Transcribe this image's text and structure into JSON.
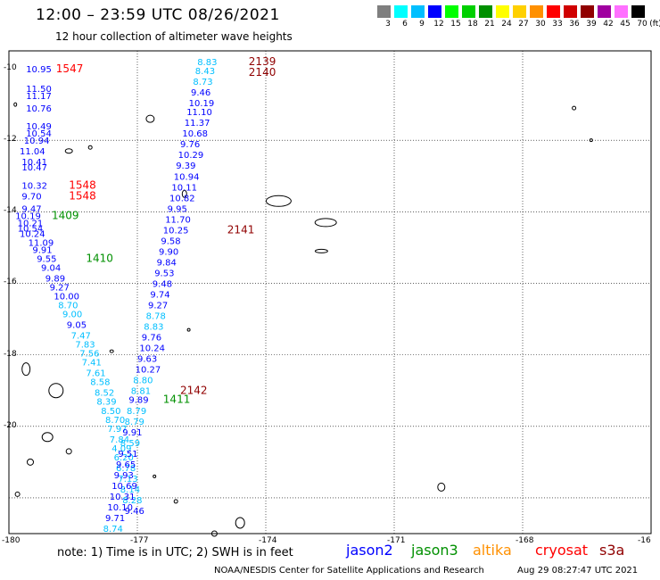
{
  "title": "12:00 – 23:59 UTC 08/26/2021",
  "subtitle": "12 hour collection of altimeter wave heights",
  "colorbar": {
    "unit": "(ft)",
    "swatches": [
      {
        "color": "#7f7f7f",
        "label": "3"
      },
      {
        "color": "#00ffff",
        "label": "6"
      },
      {
        "color": "#00bfff",
        "label": "9"
      },
      {
        "color": "#0000ff",
        "label": "12"
      },
      {
        "color": "#00ff00",
        "label": "15"
      },
      {
        "color": "#00d000",
        "label": "18"
      },
      {
        "color": "#009000",
        "label": "21"
      },
      {
        "color": "#ffff00",
        "label": "24"
      },
      {
        "color": "#ffd000",
        "label": "27"
      },
      {
        "color": "#ff9000",
        "label": "30"
      },
      {
        "color": "#ff0000",
        "label": "33"
      },
      {
        "color": "#d00000",
        "label": "36"
      },
      {
        "color": "#900000",
        "label": "39"
      },
      {
        "color": "#a000a0",
        "label": "42"
      },
      {
        "color": "#ff70ff",
        "label": "45"
      },
      {
        "color": "#000000",
        "label": "70"
      }
    ]
  },
  "axes": {
    "lon_labels": [
      "-180",
      "-177",
      "-174",
      "-171",
      "-168",
      "-16"
    ],
    "lat_labels": [
      "-10",
      "-12",
      "-14",
      "-16",
      "-18",
      "-20"
    ]
  },
  "note": "note:  1) Time is in UTC;  2) SWH is in feet",
  "legend": [
    {
      "name": "jason2",
      "color": "#0000ff"
    },
    {
      "name": "jason3",
      "color": "#009000"
    },
    {
      "name": "altika",
      "color": "#ff9000"
    },
    {
      "name": "cryosat",
      "color": "#ff0000"
    },
    {
      "name": "s3a",
      "color": "#900000"
    }
  ],
  "credit": "NOAA/NESDIS Center for Satellite Applications and Research",
  "generated": "Aug 29 08:27:47 UTC 2021",
  "colors": {
    "light_blue": "#00bfff",
    "blue": "#0000ff",
    "dark_blue": "#00008b",
    "green": "#009000",
    "red": "#ff0000",
    "dark_red": "#900000"
  },
  "tracks": [
    {
      "id": "track-a",
      "points": [
        {
          "lon": -179.6,
          "lat": -10.1,
          "value": "10.95",
          "color": "blue"
        },
        {
          "lon": -179.6,
          "lat": -10.65,
          "value": "11.50",
          "color": "blue"
        },
        {
          "lon": -179.6,
          "lat": -10.85,
          "value": "11.17",
          "color": "blue"
        },
        {
          "lon": -179.6,
          "lat": -11.2,
          "value": "10.76",
          "color": "blue"
        },
        {
          "lon": -179.6,
          "lat": -11.7,
          "value": "10.49",
          "color": "blue"
        },
        {
          "lon": -179.6,
          "lat": -11.9,
          "value": "10.54",
          "color": "blue"
        },
        {
          "lon": -179.65,
          "lat": -12.1,
          "value": "10.94",
          "color": "blue"
        },
        {
          "lon": -179.75,
          "lat": -12.4,
          "value": "11.04",
          "color": "blue"
        },
        {
          "lon": -179.7,
          "lat": -12.7,
          "value": "10.41",
          "color": "blue"
        },
        {
          "lon": -179.7,
          "lat": -12.85,
          "value": "10.47",
          "color": "blue"
        },
        {
          "lon": -179.7,
          "lat": -13.35,
          "value": "10.32",
          "color": "blue"
        },
        {
          "lon": -179.7,
          "lat": -13.65,
          "value": "9.70",
          "color": "blue"
        },
        {
          "lon": -179.7,
          "lat": -14.0,
          "value": "9.47",
          "color": "blue"
        },
        {
          "lon": -179.85,
          "lat": -14.2,
          "value": "10.19",
          "color": "blue"
        },
        {
          "lon": -179.8,
          "lat": -14.4,
          "value": "10.21",
          "color": "blue"
        },
        {
          "lon": -179.8,
          "lat": -14.55,
          "value": "10.54",
          "color": "blue"
        },
        {
          "lon": -179.75,
          "lat": -14.7,
          "value": "10.24",
          "color": "blue"
        },
        {
          "lon": -179.55,
          "lat": -14.95,
          "value": "11.09",
          "color": "blue"
        },
        {
          "lon": -179.45,
          "lat": -15.15,
          "value": "9.91",
          "color": "blue"
        },
        {
          "lon": -179.35,
          "lat": -15.4,
          "value": "9.55",
          "color": "blue"
        },
        {
          "lon": -179.25,
          "lat": -15.65,
          "value": "9.04",
          "color": "blue"
        },
        {
          "lon": -179.15,
          "lat": -15.95,
          "value": "9.89",
          "color": "blue"
        },
        {
          "lon": -179.05,
          "lat": -16.2,
          "value": "9.27",
          "color": "blue"
        },
        {
          "lon": -178.95,
          "lat": -16.45,
          "value": "10.00",
          "color": "blue"
        },
        {
          "lon": -178.85,
          "lat": -16.7,
          "value": "8.70",
          "color": "light_blue"
        },
        {
          "lon": -178.75,
          "lat": -16.95,
          "value": "9.00",
          "color": "light_blue"
        },
        {
          "lon": -178.65,
          "lat": -17.25,
          "value": "9.05",
          "color": "blue"
        },
        {
          "lon": -178.55,
          "lat": -17.55,
          "value": "7.47",
          "color": "light_blue"
        },
        {
          "lon": -178.45,
          "lat": -17.8,
          "value": "7.83",
          "color": "light_blue"
        },
        {
          "lon": -178.35,
          "lat": -18.05,
          "value": "7.56",
          "color": "light_blue"
        },
        {
          "lon": -178.3,
          "lat": -18.3,
          "value": "7.41",
          "color": "light_blue"
        },
        {
          "lon": -178.2,
          "lat": -18.6,
          "value": "7.61",
          "color": "light_blue"
        },
        {
          "lon": -178.1,
          "lat": -18.85,
          "value": "8.58",
          "color": "light_blue"
        },
        {
          "lon": -178.0,
          "lat": -19.15,
          "value": "8.52",
          "color": "light_blue"
        },
        {
          "lon": -177.95,
          "lat": -19.4,
          "value": "8.39",
          "color": "light_blue"
        },
        {
          "lon": -177.85,
          "lat": -19.65,
          "value": "8.50",
          "color": "light_blue"
        },
        {
          "lon": -177.75,
          "lat": -19.9,
          "value": "8.70",
          "color": "light_blue"
        },
        {
          "lon": -177.7,
          "lat": -20.15,
          "value": "7.97",
          "color": "light_blue"
        },
        {
          "lon": -177.65,
          "lat": -20.45,
          "value": "7.84",
          "color": "light_blue"
        },
        {
          "lon": -177.6,
          "lat": -20.7,
          "value": "4.09",
          "color": "light_blue"
        },
        {
          "lon": -177.55,
          "lat": -20.95,
          "value": "6.20",
          "color": "light_blue"
        },
        {
          "lon": -177.5,
          "lat": -21.25,
          "value": "6.78",
          "color": "light_blue"
        },
        {
          "lon": -177.45,
          "lat": -21.55,
          "value": "7.13",
          "color": "light_blue"
        },
        {
          "lon": -177.4,
          "lat": -21.85,
          "value": "8.14",
          "color": "light_blue"
        },
        {
          "lon": -177.35,
          "lat": -22.15,
          "value": "8.28",
          "color": "light_blue"
        },
        {
          "lon": -177.3,
          "lat": -22.45,
          "value": "9.46",
          "color": "blue"
        }
      ]
    },
    {
      "id": "track-b",
      "points": [
        {
          "lon": -175.6,
          "lat": -9.9,
          "value": "8.83",
          "color": "light_blue"
        },
        {
          "lon": -175.65,
          "lat": -10.15,
          "value": "8.43",
          "color": "light_blue"
        },
        {
          "lon": -175.7,
          "lat": -10.45,
          "value": "8.73",
          "color": "light_blue"
        },
        {
          "lon": -175.75,
          "lat": -10.75,
          "value": "9.46",
          "color": "blue"
        },
        {
          "lon": -175.8,
          "lat": -11.05,
          "value": "10.19",
          "color": "blue"
        },
        {
          "lon": -175.85,
          "lat": -11.3,
          "value": "11.10",
          "color": "blue"
        },
        {
          "lon": -175.9,
          "lat": -11.6,
          "value": "11.37",
          "color": "blue"
        },
        {
          "lon": -175.95,
          "lat": -11.9,
          "value": "10.68",
          "color": "blue"
        },
        {
          "lon": -176.0,
          "lat": -12.2,
          "value": "9.76",
          "color": "blue"
        },
        {
          "lon": -176.05,
          "lat": -12.5,
          "value": "10.29",
          "color": "blue"
        },
        {
          "lon": -176.1,
          "lat": -12.8,
          "value": "9.39",
          "color": "blue"
        },
        {
          "lon": -176.15,
          "lat": -13.1,
          "value": "10.94",
          "color": "blue"
        },
        {
          "lon": -176.2,
          "lat": -13.4,
          "value": "10.11",
          "color": "blue"
        },
        {
          "lon": -176.25,
          "lat": -13.7,
          "value": "10.82",
          "color": "blue"
        },
        {
          "lon": -176.3,
          "lat": -14.0,
          "value": "9.95",
          "color": "blue"
        },
        {
          "lon": -176.35,
          "lat": -14.3,
          "value": "11.70",
          "color": "blue"
        },
        {
          "lon": -176.4,
          "lat": -14.6,
          "value": "10.25",
          "color": "blue"
        },
        {
          "lon": -176.45,
          "lat": -14.9,
          "value": "9.58",
          "color": "blue"
        },
        {
          "lon": -176.5,
          "lat": -15.2,
          "value": "9.90",
          "color": "blue"
        },
        {
          "lon": -176.55,
          "lat": -15.5,
          "value": "9.84",
          "color": "blue"
        },
        {
          "lon": -176.6,
          "lat": -15.8,
          "value": "9.53",
          "color": "blue"
        },
        {
          "lon": -176.65,
          "lat": -16.1,
          "value": "9.48",
          "color": "blue"
        },
        {
          "lon": -176.7,
          "lat": -16.4,
          "value": "9.74",
          "color": "blue"
        },
        {
          "lon": -176.75,
          "lat": -16.7,
          "value": "9.27",
          "color": "blue"
        },
        {
          "lon": -176.8,
          "lat": -17.0,
          "value": "8.78",
          "color": "light_blue"
        },
        {
          "lon": -176.85,
          "lat": -17.3,
          "value": "8.83",
          "color": "light_blue"
        },
        {
          "lon": -176.9,
          "lat": -17.6,
          "value": "9.76",
          "color": "blue"
        },
        {
          "lon": -176.95,
          "lat": -17.9,
          "value": "10.24",
          "color": "blue"
        },
        {
          "lon": -177.0,
          "lat": -18.2,
          "value": "9.63",
          "color": "blue"
        },
        {
          "lon": -177.05,
          "lat": -18.5,
          "value": "10.27",
          "color": "blue"
        },
        {
          "lon": -177.1,
          "lat": -18.8,
          "value": "8.80",
          "color": "light_blue"
        },
        {
          "lon": -177.15,
          "lat": -19.1,
          "value": "8.81",
          "color": "light_blue"
        },
        {
          "lon": -177.2,
          "lat": -19.35,
          "value": "9.89",
          "color": "blue"
        },
        {
          "lon": -177.25,
          "lat": -19.65,
          "value": "8.79",
          "color": "light_blue"
        },
        {
          "lon": -177.3,
          "lat": -19.95,
          "value": "8.79",
          "color": "light_blue"
        },
        {
          "lon": -177.35,
          "lat": -20.25,
          "value": "9.91",
          "color": "blue"
        },
        {
          "lon": -177.4,
          "lat": -20.55,
          "value": "8.59",
          "color": "light_blue"
        },
        {
          "lon": -177.45,
          "lat": -20.85,
          "value": "9.51",
          "color": "blue"
        },
        {
          "lon": -177.5,
          "lat": -21.15,
          "value": "9.65",
          "color": "blue"
        },
        {
          "lon": -177.55,
          "lat": -21.45,
          "value": "9.93",
          "color": "blue"
        },
        {
          "lon": -177.6,
          "lat": -21.75,
          "value": "10.69",
          "color": "blue"
        },
        {
          "lon": -177.65,
          "lat": -22.05,
          "value": "10.31",
          "color": "blue"
        },
        {
          "lon": -177.7,
          "lat": -22.35,
          "value": "10.10",
          "color": "blue"
        },
        {
          "lon": -177.75,
          "lat": -22.65,
          "value": "9.71",
          "color": "blue"
        },
        {
          "lon": -177.8,
          "lat": -22.95,
          "value": "8.74",
          "color": "light_blue"
        }
      ]
    }
  ],
  "time_labels": [
    {
      "lon": -178.9,
      "lat": -10.1,
      "text": "1547",
      "color": "red"
    },
    {
      "lon": -174.4,
      "lat": -9.9,
      "text": "2139",
      "color": "dark_red"
    },
    {
      "lon": -174.4,
      "lat": -10.2,
      "text": "2140",
      "color": "dark_red"
    },
    {
      "lon": -178.6,
      "lat": -13.35,
      "text": "1548",
      "color": "red"
    },
    {
      "lon": -178.6,
      "lat": -13.65,
      "text": "1548",
      "color": "red"
    },
    {
      "lon": -179.0,
      "lat": -14.2,
      "text": "1409",
      "color": "green"
    },
    {
      "lon": -174.9,
      "lat": -14.6,
      "text": "2141",
      "color": "dark_red"
    },
    {
      "lon": -178.2,
      "lat": -15.4,
      "text": "1410",
      "color": "green"
    },
    {
      "lon": -176.0,
      "lat": -19.1,
      "text": "2142",
      "color": "dark_red"
    },
    {
      "lon": -176.4,
      "lat": -19.35,
      "text": "1411",
      "color": "green"
    }
  ]
}
